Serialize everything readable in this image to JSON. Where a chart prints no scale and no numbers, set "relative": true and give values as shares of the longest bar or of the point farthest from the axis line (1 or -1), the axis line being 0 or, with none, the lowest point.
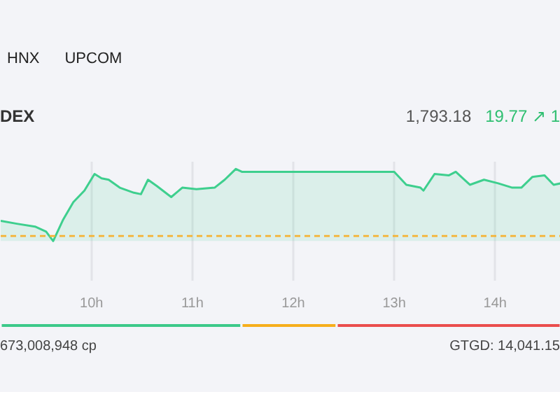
{
  "chart_data": [
    {
      "type": "area",
      "title": "DEX",
      "relative": true,
      "x": [
        9.1,
        9.26,
        9.44,
        9.55,
        9.62,
        9.72,
        9.82,
        9.93,
        10.03,
        10.1,
        10.17,
        10.28,
        10.42,
        10.49,
        10.56,
        10.65,
        10.79,
        10.9,
        11.04,
        11.22,
        11.32,
        11.43,
        11.49,
        13.0,
        13.12,
        13.26,
        13.29,
        13.4,
        13.54,
        13.61,
        13.75,
        13.89,
        14.03,
        14.17,
        14.26,
        14.37,
        14.49,
        14.58,
        14.65
      ],
      "series": [
        {
          "color": "#3ecf8e",
          "values": [
            0.28,
            0.24,
            0.2,
            0.13,
            0,
            0.3,
            0.54,
            0.7,
            0.93,
            0.87,
            0.85,
            0.74,
            0.67,
            0.65,
            0.85,
            0.76,
            0.61,
            0.74,
            0.72,
            0.74,
            0.85,
            1.0,
            0.96,
            0.96,
            0.78,
            0.74,
            0.7,
            0.93,
            0.91,
            0.96,
            0.78,
            0.85,
            0.8,
            0.74,
            0.74,
            0.89,
            0.91,
            0.78,
            0.8
          ]
        }
      ],
      "xlim": [
        9.1,
        14.65
      ],
      "xticks": [
        {
          "value": 10,
          "label": "10h"
        },
        {
          "value": 11,
          "label": "11h"
        },
        {
          "value": 12,
          "label": "12h"
        },
        {
          "value": 13,
          "label": "13h"
        },
        {
          "value": 14,
          "label": "14h"
        }
      ],
      "grid": "x",
      "ref_lines": [
        {
          "axis": "y",
          "value": 0.07,
          "color": "#f5b335",
          "line_style": "dashed"
        }
      ],
      "annotations": [
        "HNX",
        "UPCOM",
        "1,793.18",
        "19.77 ↗ 1"
      ]
    },
    {
      "type": "bar",
      "orientation": "horizontal",
      "stacked": true,
      "relative": true,
      "categories": [
        null
      ],
      "series": [
        {
          "color": "#3cc98a",
          "values": [
            0.43
          ]
        },
        {
          "color": "#f6ae1c",
          "values": [
            0.17
          ]
        },
        {
          "color": "#ea4d4d",
          "values": [
            0.4
          ]
        }
      ],
      "annotations": [
        "673,008,948 cp",
        "GTGD: 14,041.15"
      ]
    }
  ]
}
